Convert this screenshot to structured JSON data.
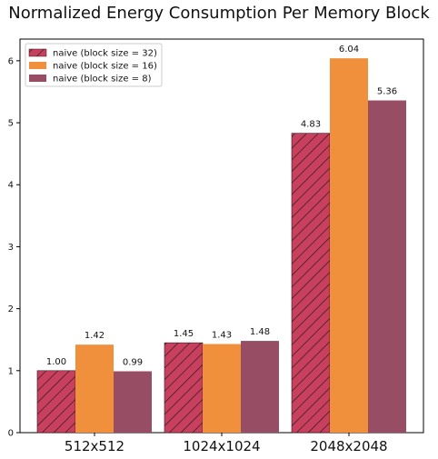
{
  "chart_data": {
    "type": "bar",
    "title": "Normalized Energy Consumption Per Memory Block",
    "xlabel": "",
    "ylabel": "",
    "categories": [
      "512x512",
      "1024x1024",
      "2048x2048"
    ],
    "ylim": [
      0,
      6.35
    ],
    "yticks": [
      0,
      1,
      2,
      3,
      4,
      5,
      6
    ],
    "legend_position": "top-left",
    "grid": false,
    "series": [
      {
        "name": "naive (block size = 32)",
        "values": [
          1.0,
          1.45,
          4.83
        ],
        "labels": [
          "1.00",
          "1.45",
          "4.83"
        ],
        "color": "#c8405d",
        "hatch": true
      },
      {
        "name": "naive (block size = 16)",
        "values": [
          1.42,
          1.43,
          6.04
        ],
        "labels": [
          "1.42",
          "1.43",
          "6.04"
        ],
        "color": "#f0903c",
        "hatch": false
      },
      {
        "name": "naive (block size = 8)",
        "values": [
          0.99,
          1.48,
          5.36
        ],
        "labels": [
          "0.99",
          "1.48",
          "5.36"
        ],
        "color": "#974d63",
        "hatch": false
      }
    ]
  }
}
